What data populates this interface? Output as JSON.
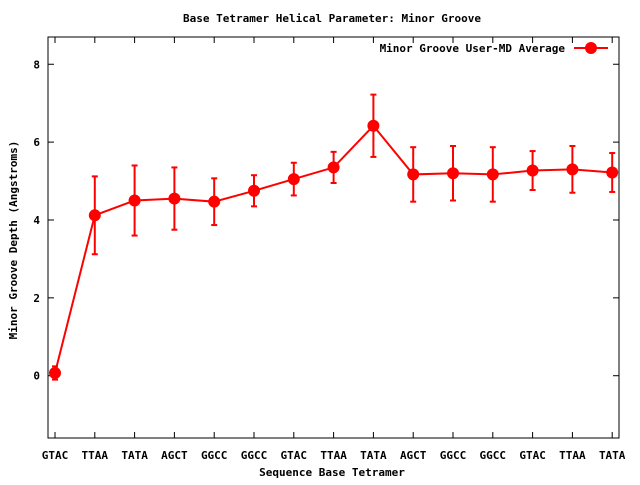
{
  "chart_data": {
    "type": "line",
    "title": "Base Tetramer Helical Parameter: Minor Groove",
    "xlabel": "Sequence Base Tetramer",
    "ylabel": "Minor Groove Depth (Angstroms)",
    "categories": [
      "GTAC",
      "TTAA",
      "TATA",
      "AGCT",
      "GGCC",
      "GGCC",
      "GTAC",
      "TTAA",
      "TATA",
      "AGCT",
      "GGCC",
      "GGCC",
      "GTAC",
      "TTAA",
      "TATA"
    ],
    "ylim": [
      -1.6,
      8.7
    ],
    "yticks": [
      0,
      2,
      4,
      6,
      8
    ],
    "grid": false,
    "legend_position": "top-right",
    "series": [
      {
        "name": "Minor Groove User-MD Average",
        "color": "#ff0000",
        "marker": "circle",
        "values": [
          0.07,
          4.12,
          4.5,
          4.55,
          4.47,
          4.75,
          5.05,
          5.35,
          6.42,
          5.17,
          5.2,
          5.17,
          5.27,
          5.3,
          5.22
        ],
        "errors": [
          0.17,
          1.0,
          0.9,
          0.8,
          0.6,
          0.4,
          0.42,
          0.4,
          0.8,
          0.7,
          0.7,
          0.7,
          0.5,
          0.6,
          0.5
        ]
      }
    ]
  }
}
